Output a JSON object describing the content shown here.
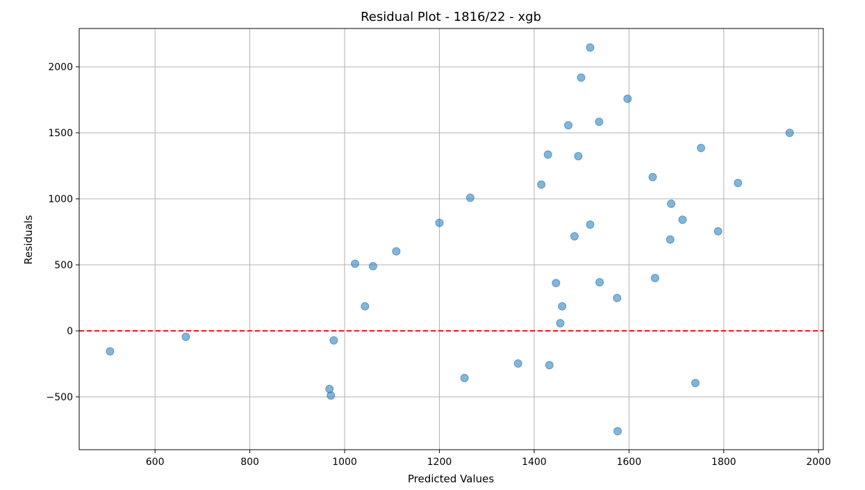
{
  "chart_data": {
    "type": "scatter",
    "title": "Residual Plot - 1816/22 - xgb",
    "xlabel": "Predicted Values",
    "ylabel": "Residuals",
    "xlim": [
      440,
      2010
    ],
    "ylim": [
      -900,
      2290
    ],
    "xticks": [
      600,
      800,
      1000,
      1200,
      1400,
      1600,
      1800,
      2000
    ],
    "yticks": [
      -500,
      0,
      500,
      1000,
      1500,
      2000
    ],
    "xtick_labels": [
      "600",
      "800",
      "1000",
      "1200",
      "1400",
      "1600",
      "1800",
      "2000"
    ],
    "ytick_labels": [
      "−500",
      "0",
      "500",
      "1000",
      "1500",
      "2000"
    ],
    "grid": true,
    "reference_line": {
      "y": 0,
      "color": "#e41a1c",
      "style": "dashed"
    },
    "marker_color": "#1f77b4",
    "points": [
      {
        "x": 505,
        "y": -155
      },
      {
        "x": 665,
        "y": -45
      },
      {
        "x": 968,
        "y": -440
      },
      {
        "x": 971,
        "y": -490
      },
      {
        "x": 977,
        "y": -72
      },
      {
        "x": 1022,
        "y": 508
      },
      {
        "x": 1043,
        "y": 186
      },
      {
        "x": 1060,
        "y": 490
      },
      {
        "x": 1109,
        "y": 602
      },
      {
        "x": 1200,
        "y": 818
      },
      {
        "x": 1253,
        "y": -357
      },
      {
        "x": 1265,
        "y": 1008
      },
      {
        "x": 1366,
        "y": -247
      },
      {
        "x": 1415,
        "y": 1108
      },
      {
        "x": 1429,
        "y": 1335
      },
      {
        "x": 1432,
        "y": -260
      },
      {
        "x": 1446,
        "y": 362
      },
      {
        "x": 1455,
        "y": 58
      },
      {
        "x": 1459,
        "y": 186
      },
      {
        "x": 1472,
        "y": 1557
      },
      {
        "x": 1485,
        "y": 716
      },
      {
        "x": 1493,
        "y": 1323
      },
      {
        "x": 1499,
        "y": 1918
      },
      {
        "x": 1518,
        "y": 805
      },
      {
        "x": 1518,
        "y": 2146
      },
      {
        "x": 1537,
        "y": 1583
      },
      {
        "x": 1538,
        "y": 368
      },
      {
        "x": 1575,
        "y": 249
      },
      {
        "x": 1576,
        "y": -760
      },
      {
        "x": 1597,
        "y": 1758
      },
      {
        "x": 1650,
        "y": 1165
      },
      {
        "x": 1655,
        "y": 400
      },
      {
        "x": 1687,
        "y": 692
      },
      {
        "x": 1689,
        "y": 963
      },
      {
        "x": 1713,
        "y": 842
      },
      {
        "x": 1740,
        "y": -395
      },
      {
        "x": 1752,
        "y": 1385
      },
      {
        "x": 1788,
        "y": 754
      },
      {
        "x": 1830,
        "y": 1120
      },
      {
        "x": 1939,
        "y": 1500
      }
    ]
  }
}
